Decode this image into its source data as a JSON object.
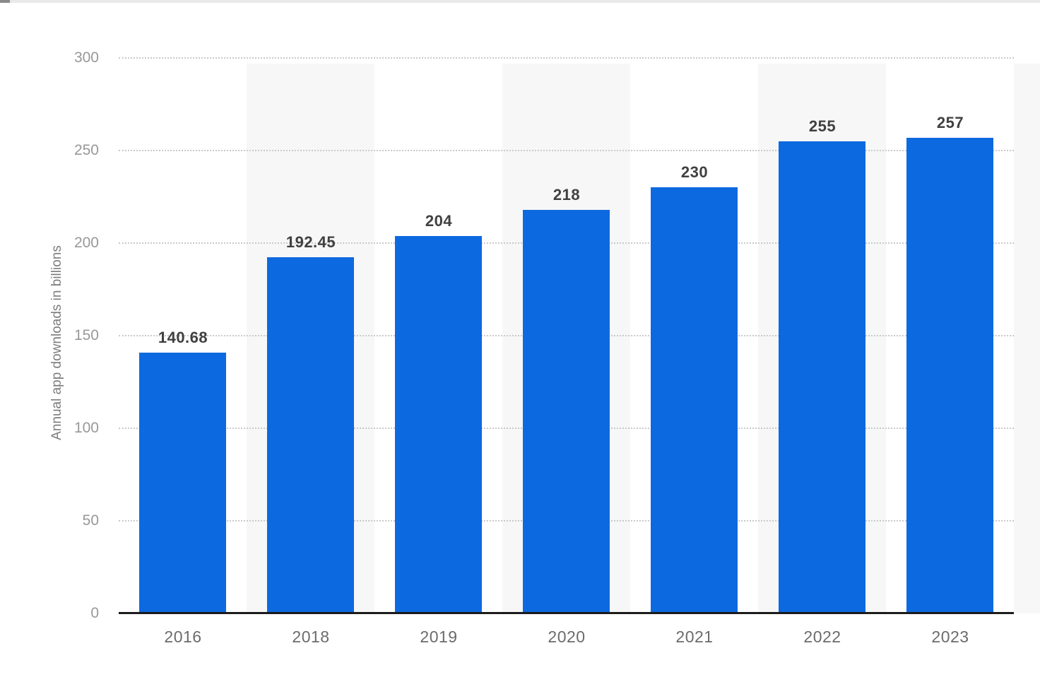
{
  "page": {
    "background": "#ffffff",
    "top_edge_color": "#e9e9e9",
    "top_edge_accent_color": "#8a8a8a"
  },
  "chart_data": {
    "type": "bar",
    "title": "",
    "xlabel": "",
    "ylabel": "Annual app downloads in billions",
    "categories": [
      "2016",
      "2018",
      "2019",
      "2020",
      "2021",
      "2022",
      "2023"
    ],
    "values": [
      140.68,
      192.45,
      204,
      218,
      230,
      255,
      257
    ],
    "value_labels": [
      "140.68",
      "192.45",
      "204",
      "218",
      "230",
      "255",
      "257"
    ],
    "yticks": [
      0,
      50,
      100,
      150,
      200,
      250,
      300
    ],
    "ylim": [
      0,
      300
    ],
    "grid": "horizontal dotted gridlines at each y tick",
    "legend": "none",
    "shaded_category_slots": [
      1,
      3,
      5
    ],
    "colors": {
      "bar": "#0d69e0",
      "band": "#f7f7f7",
      "gridline": "#c9c9c9",
      "axis_line": "#1c1c1c",
      "value_label": "#404040",
      "y_tick_label": "#989898",
      "x_tick_label": "#6b6b6b",
      "y_axis_title": "#7d7d7d"
    }
  }
}
